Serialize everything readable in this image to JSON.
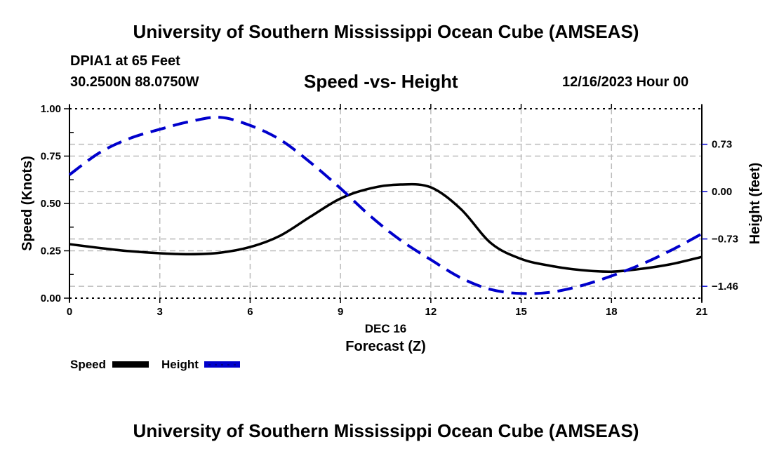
{
  "header": {
    "title": "University of Southern Mississippi Ocean Cube (AMSEAS)",
    "station": "DPIA1 at 65 Feet",
    "coordinates": "30.2500N  88.0750W",
    "chart_title": "Speed -vs- Height",
    "date": "12/16/2023 Hour 00"
  },
  "footer": {
    "title": "University of Southern Mississippi Ocean Cube (AMSEAS)"
  },
  "legend": [
    {
      "label": "Speed",
      "color": "#000000",
      "style": "solid"
    },
    {
      "label": "Height",
      "color": "#0000cc",
      "style": "dashed"
    }
  ],
  "chart_data": {
    "type": "line",
    "title": "Speed -vs- Height",
    "xlabel": "Forecast (Z)",
    "xsublabel": "DEC 16",
    "ylabel": "Speed (Knots)",
    "y2label": "Height (feet)",
    "xlim": [
      0,
      21
    ],
    "ylim": [
      0,
      1.0
    ],
    "y2lim": [
      -1.6425,
      1.2775
    ],
    "xticks": [
      0,
      3,
      6,
      9,
      12,
      15,
      18,
      21
    ],
    "xtick_labels": [
      "0",
      "3",
      "6",
      "9",
      "12",
      "15",
      "18",
      "21"
    ],
    "yticks": [
      0,
      0.25,
      0.5,
      0.75,
      1.0
    ],
    "ytick_labels": [
      "0.00",
      "0.25",
      "0.50",
      "0.75",
      "1.00"
    ],
    "y2ticks": [
      0.73,
      0.0,
      -0.73,
      -1.46
    ],
    "y2tick_labels": [
      "0.73",
      "0.00",
      "−0.73",
      "−1.46"
    ],
    "grid": true,
    "legend_position": "bottom-left",
    "x": [
      0,
      1,
      2,
      3,
      4,
      5,
      6,
      7,
      8,
      9,
      10,
      11,
      12,
      13,
      14,
      15,
      16,
      17,
      18,
      19,
      20,
      21
    ],
    "series": [
      {
        "name": "Speed",
        "axis": "left",
        "color": "#000000",
        "style": "solid",
        "values": [
          0.285,
          0.265,
          0.248,
          0.237,
          0.232,
          0.24,
          0.27,
          0.33,
          0.43,
          0.526,
          0.58,
          0.6,
          0.585,
          0.47,
          0.29,
          0.207,
          0.17,
          0.148,
          0.14,
          0.155,
          0.18,
          0.218
        ]
      },
      {
        "name": "Height",
        "axis": "right",
        "color": "#0000cc",
        "style": "dashed",
        "values": [
          0.26,
          0.6,
          0.82,
          0.96,
          1.08,
          1.145,
          1.02,
          0.8,
          0.45,
          0.05,
          -0.38,
          -0.75,
          -1.05,
          -1.33,
          -1.51,
          -1.57,
          -1.55,
          -1.45,
          -1.3,
          -1.12,
          -0.9,
          -0.65
        ]
      }
    ]
  }
}
